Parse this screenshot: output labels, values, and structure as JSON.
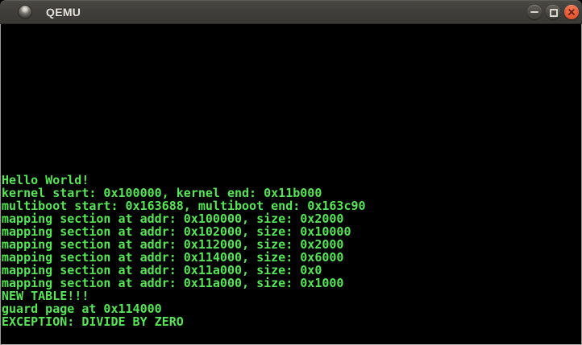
{
  "window": {
    "title": "QEMU",
    "titlebar": {
      "icon": "qemu-window-icon",
      "controls": [
        {
          "name": "minimize",
          "icon": "minimize-icon"
        },
        {
          "name": "maximize",
          "icon": "maximize-icon"
        },
        {
          "name": "close",
          "icon": "close-icon"
        }
      ]
    }
  },
  "colors": {
    "console_text_green": "#55e655",
    "console_background": "#000000",
    "titlebar_background": "#3f3e3a",
    "titlebar_text": "#e7e4de",
    "close_button_orange": "#e65a35",
    "frame_border": "#b3b0a7"
  },
  "console": {
    "lines": [
      "Hello World!",
      "kernel start: 0x100000, kernel end: 0x11b000",
      "multiboot start: 0x163688, multiboot end: 0x163c90",
      "mapping section at addr: 0x100000, size: 0x2000",
      "mapping section at addr: 0x102000, size: 0x10000",
      "mapping section at addr: 0x112000, size: 0x2000",
      "mapping section at addr: 0x114000, size: 0x6000",
      "mapping section at addr: 0x11a000, size: 0x0",
      "mapping section at addr: 0x11a000, size: 0x1000",
      "NEW TABLE!!!",
      "guard page at 0x114000",
      "EXCEPTION: DIVIDE BY ZERO"
    ]
  }
}
